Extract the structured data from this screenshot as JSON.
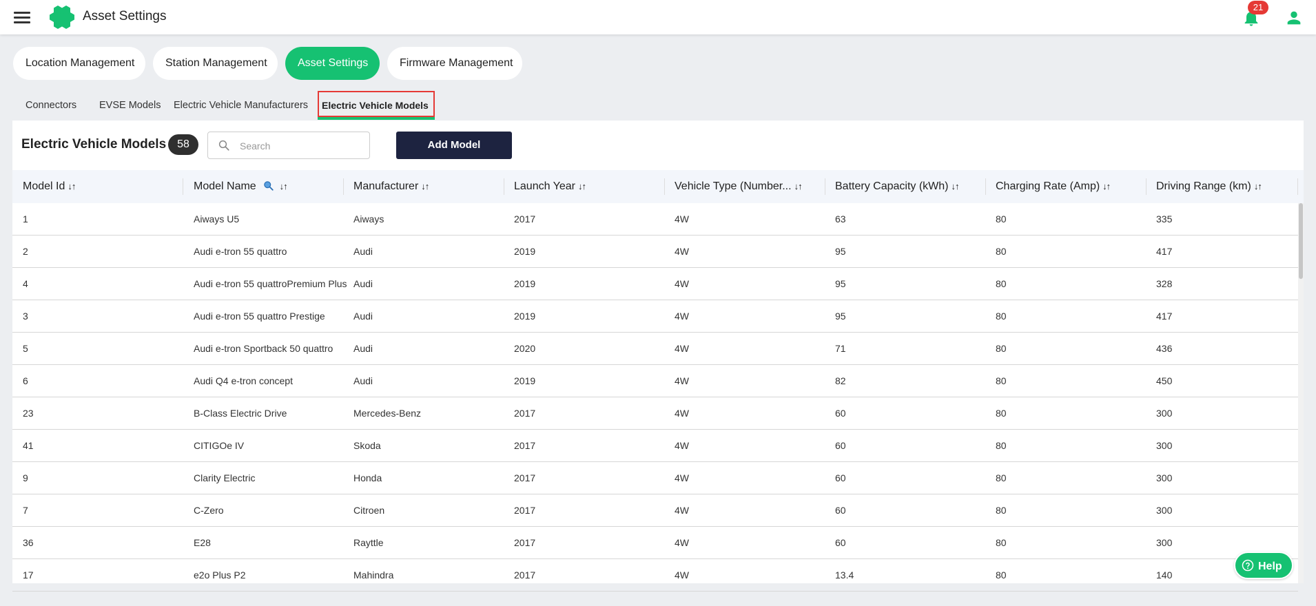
{
  "header": {
    "title": "Asset Settings",
    "notification_count": "21",
    "brand_color": "#16c172"
  },
  "main_tabs": [
    {
      "label": "Location Management"
    },
    {
      "label": "Station Management"
    },
    {
      "label": "Asset Settings",
      "active": true
    },
    {
      "label": "Firmware Management"
    }
  ],
  "sub_tabs": [
    {
      "label": "Connectors"
    },
    {
      "label": "EVSE Models"
    },
    {
      "label": "Electric Vehicle Manufacturers"
    },
    {
      "label": "Electric Vehicle Models",
      "active": true
    }
  ],
  "panel": {
    "title": "Electric Vehicle Models",
    "count": "58",
    "search_placeholder": "Search",
    "add_button": "Add Model"
  },
  "table": {
    "columns": [
      "Model Id",
      "Model Name",
      "Manufacturer",
      "Launch Year",
      "Vehicle Type (Number...",
      "Battery Capacity (kWh)",
      "Charging Rate (Amp)",
      "Driving Range (km)"
    ],
    "sort_glyph": "↓↑",
    "rows": [
      [
        "1",
        "Aiways U5",
        "Aiways",
        "2017",
        "4W",
        "63",
        "80",
        "335"
      ],
      [
        "2",
        "Audi e-tron 55 quattro",
        "Audi",
        "2019",
        "4W",
        "95",
        "80",
        "417"
      ],
      [
        "4",
        "Audi e-tron 55 quattroPremium Plus",
        "Audi",
        "2019",
        "4W",
        "95",
        "80",
        "328"
      ],
      [
        "3",
        "Audi e-tron 55 quattro Prestige",
        "Audi",
        "2019",
        "4W",
        "95",
        "80",
        "417"
      ],
      [
        "5",
        "Audi e-tron Sportback 50 quattro",
        "Audi",
        "2020",
        "4W",
        "71",
        "80",
        "436"
      ],
      [
        "6",
        "Audi Q4 e-tron concept",
        "Audi",
        "2019",
        "4W",
        "82",
        "80",
        "450"
      ],
      [
        "23",
        "B-Class Electric Drive",
        "Mercedes-Benz",
        "2017",
        "4W",
        "60",
        "80",
        "300"
      ],
      [
        "41",
        "CITIGOe IV",
        "Skoda",
        "2017",
        "4W",
        "60",
        "80",
        "300"
      ],
      [
        "9",
        "Clarity Electric",
        "Honda",
        "2017",
        "4W",
        "60",
        "80",
        "300"
      ],
      [
        "7",
        "C-Zero",
        "Citroen",
        "2017",
        "4W",
        "60",
        "80",
        "300"
      ],
      [
        "36",
        "E28",
        "Rayttle",
        "2017",
        "4W",
        "60",
        "80",
        "300"
      ],
      [
        "17",
        "e2o Plus P2",
        "Mahindra",
        "2017",
        "4W",
        "13.4",
        "80",
        "140"
      ]
    ]
  },
  "help": {
    "label": "Help"
  }
}
